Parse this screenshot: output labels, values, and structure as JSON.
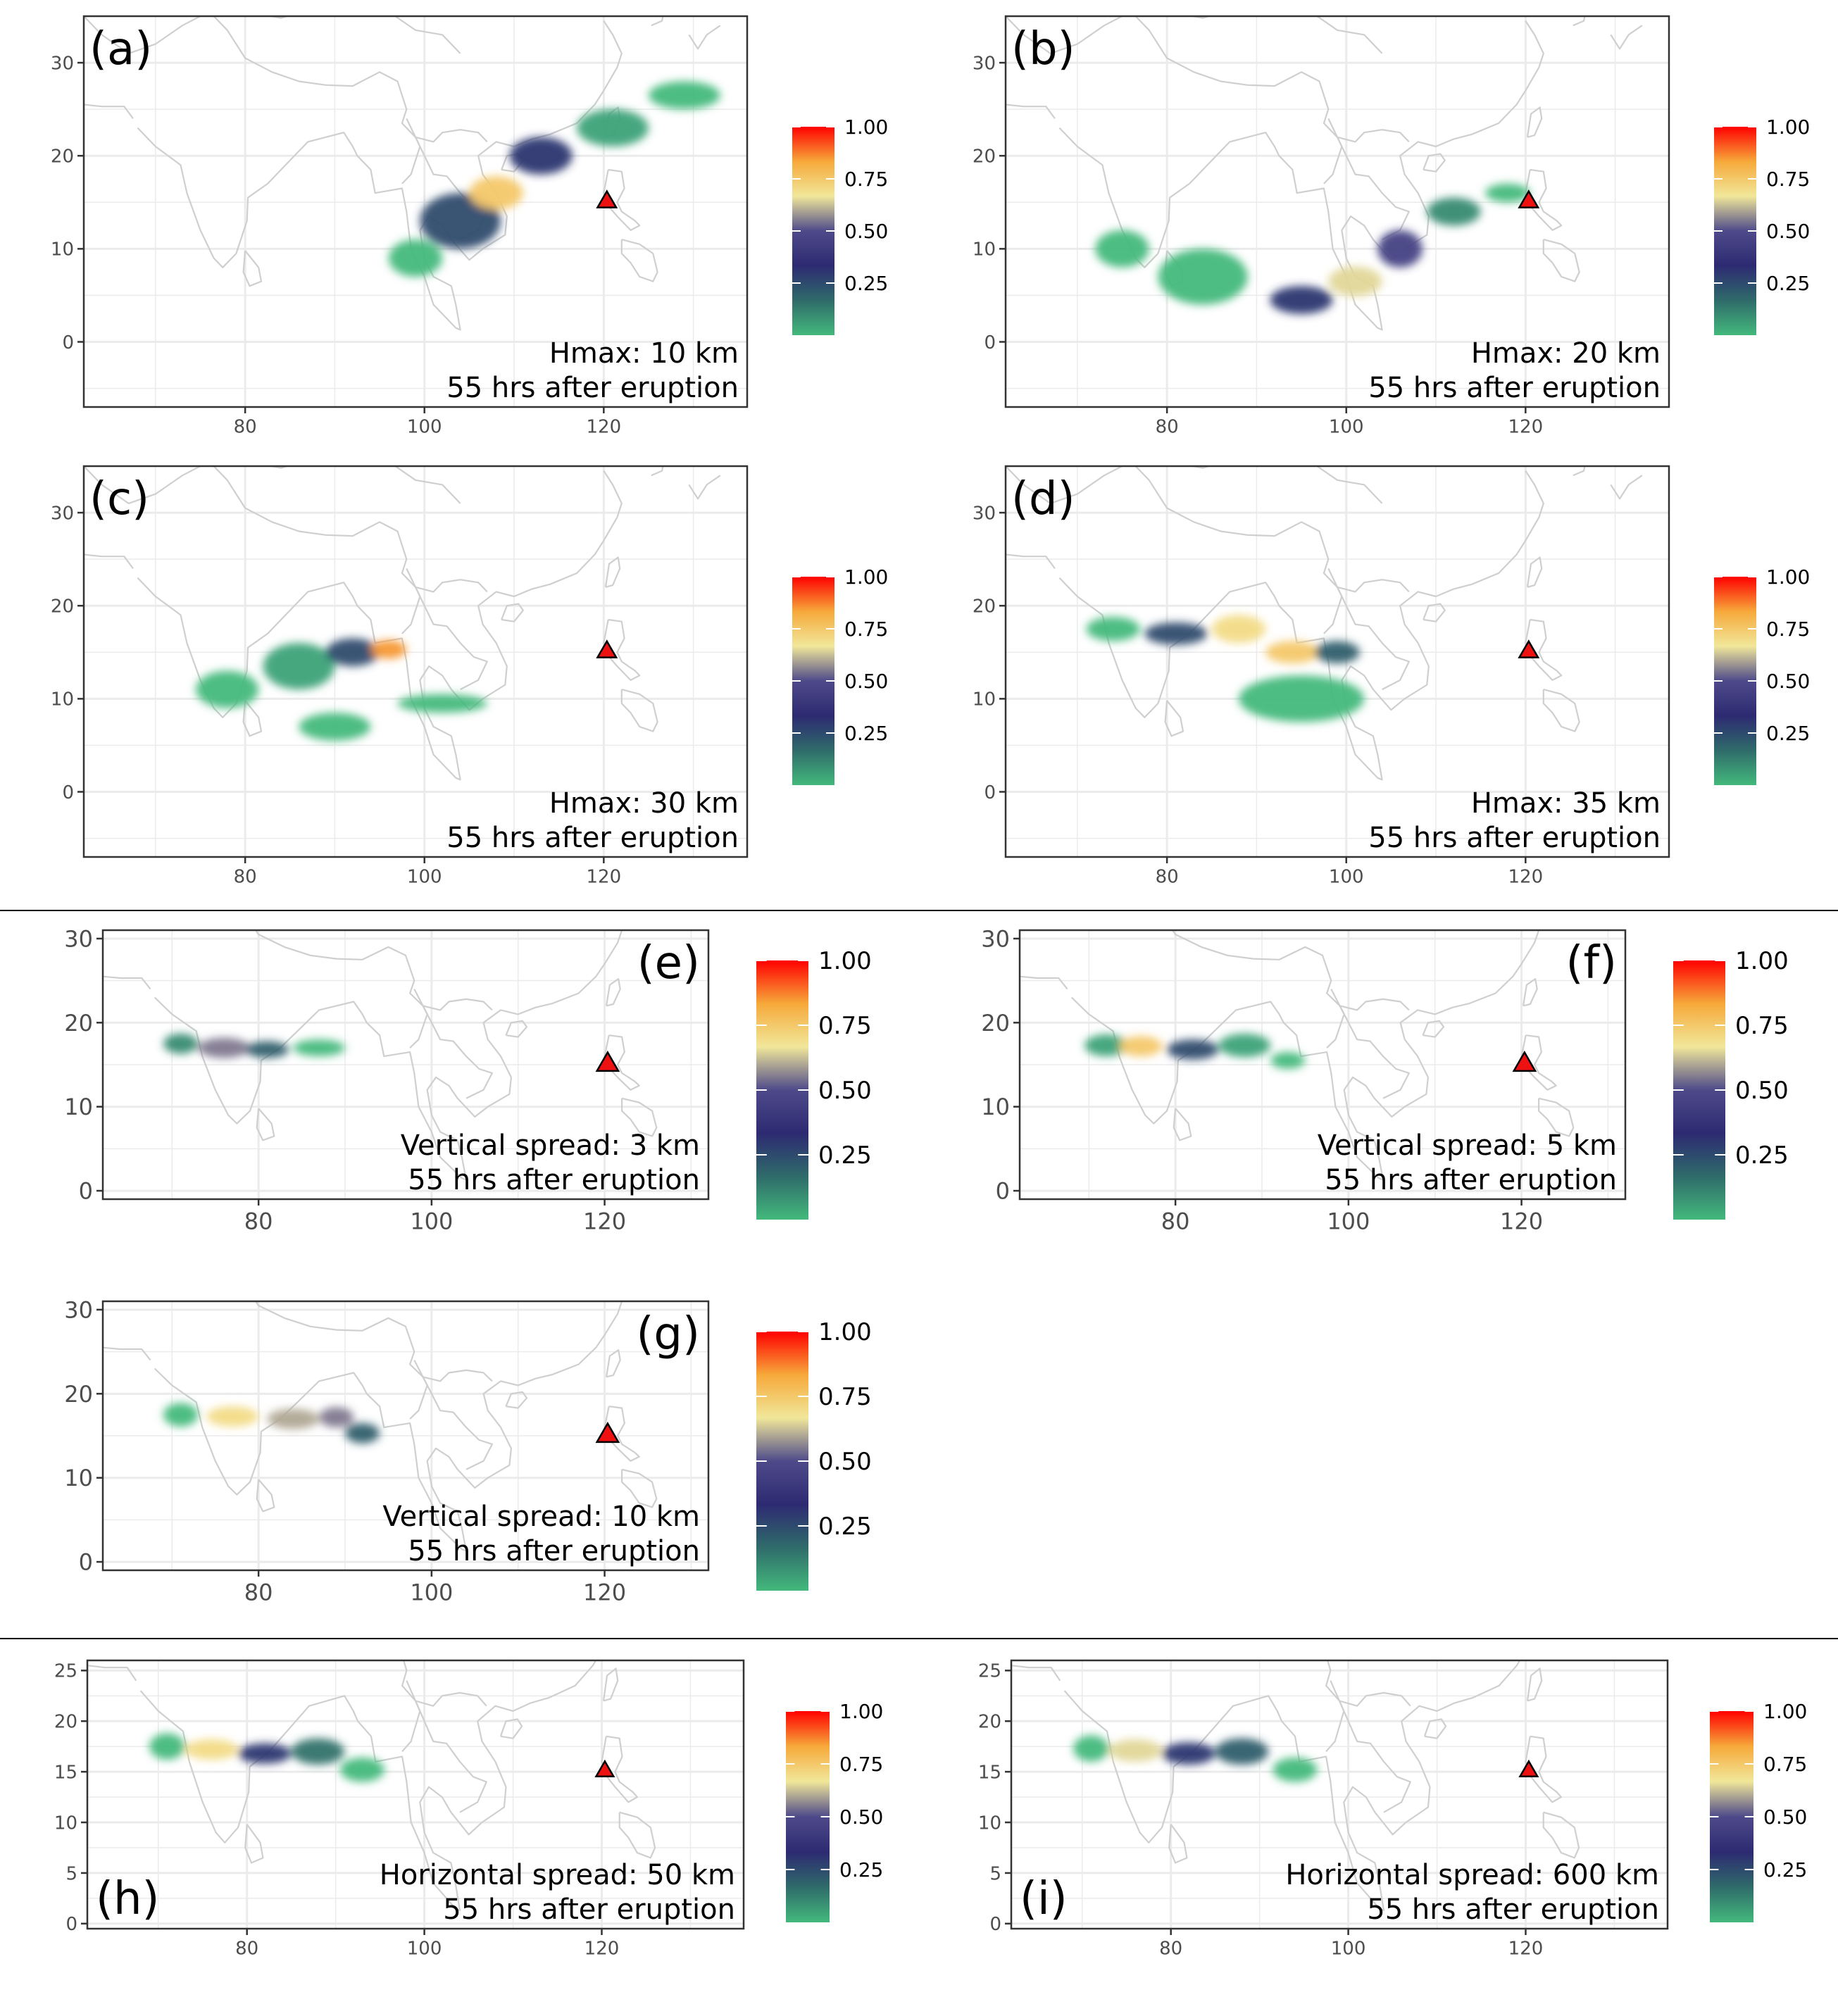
{
  "colors": {
    "panel_border": "#333333",
    "grid": "#ebebeb",
    "land_outline": "#cfcfcf",
    "volcano_fill": "#ee1111",
    "volcano_stroke": "#000000",
    "separator": "#000000",
    "colorbar_stops": [
      "#43b97c",
      "#2f6b6a",
      "#2d2a72",
      "#4e4a8a",
      "#f1e79a",
      "#f6a93a",
      "#ff0000"
    ]
  },
  "chart_data": [
    {
      "type": "heatmap",
      "panel": "(a)",
      "annotation_line1": "Hmax: 10 km",
      "annotation_line2": "55 hrs after eruption",
      "x_ticks": [
        "80",
        "100",
        "120"
      ],
      "y_ticks": [
        "0",
        "10",
        "20",
        "30"
      ],
      "xlim": [
        62,
        136
      ],
      "ylim": [
        -7,
        35
      ],
      "colorbar_ticks": [
        "1.00",
        "0.75",
        "0.50",
        "0.25"
      ],
      "colorbar_range": [
        0,
        1
      ],
      "volcano": [
        120.35,
        15.13
      ],
      "plume": [
        {
          "lon": 99,
          "lat": 9,
          "rx": 3,
          "ry": 2,
          "level": 0
        },
        {
          "lon": 104,
          "lat": 13,
          "rx": 4.5,
          "ry": 3,
          "level": 0.25
        },
        {
          "lon": 108,
          "lat": 16,
          "rx": 3,
          "ry": 1.8,
          "level": 0.75
        },
        {
          "lon": 113,
          "lat": 20,
          "rx": 3.5,
          "ry": 2,
          "level": 0.3
        },
        {
          "lon": 121,
          "lat": 23,
          "rx": 4,
          "ry": 2,
          "level": 0.05
        },
        {
          "lon": 129,
          "lat": 26.5,
          "rx": 4,
          "ry": 1.5,
          "level": 0
        }
      ]
    },
    {
      "type": "heatmap",
      "panel": "(b)",
      "annotation_line1": "Hmax: 20 km",
      "annotation_line2": "55 hrs after eruption",
      "x_ticks": [
        "80",
        "100",
        "120"
      ],
      "y_ticks": [
        "0",
        "10",
        "20",
        "30"
      ],
      "xlim": [
        62,
        136
      ],
      "ylim": [
        -7,
        35
      ],
      "colorbar_ticks": [
        "1.00",
        "0.75",
        "0.50",
        "0.25"
      ],
      "colorbar_range": [
        0,
        1
      ],
      "volcano": [
        120.35,
        15.13
      ],
      "plume": [
        {
          "lon": 75,
          "lat": 10,
          "rx": 3,
          "ry": 2,
          "level": 0
        },
        {
          "lon": 84,
          "lat": 7,
          "rx": 5,
          "ry": 3,
          "level": 0
        },
        {
          "lon": 95,
          "lat": 4.5,
          "rx": 3.5,
          "ry": 1.5,
          "level": 0.3
        },
        {
          "lon": 101,
          "lat": 6.5,
          "rx": 3,
          "ry": 1.6,
          "level": 0.65
        },
        {
          "lon": 106,
          "lat": 10,
          "rx": 2.5,
          "ry": 2,
          "level": 0.45
        },
        {
          "lon": 112,
          "lat": 14,
          "rx": 3,
          "ry": 1.5,
          "level": 0.1
        },
        {
          "lon": 118,
          "lat": 16,
          "rx": 2.5,
          "ry": 1,
          "level": 0
        }
      ]
    },
    {
      "type": "heatmap",
      "panel": "(c)",
      "annotation_line1": "Hmax: 30 km",
      "annotation_line2": "55 hrs after eruption",
      "x_ticks": [
        "80",
        "100",
        "120"
      ],
      "y_ticks": [
        "0",
        "10",
        "20",
        "30"
      ],
      "xlim": [
        62,
        136
      ],
      "ylim": [
        -7,
        35
      ],
      "colorbar_ticks": [
        "1.00",
        "0.75",
        "0.50",
        "0.25"
      ],
      "colorbar_range": [
        0,
        1
      ],
      "volcano": [
        120.35,
        15.13
      ],
      "plume": [
        {
          "lon": 78,
          "lat": 11,
          "rx": 3.5,
          "ry": 2,
          "level": 0
        },
        {
          "lon": 86,
          "lat": 13.5,
          "rx": 4,
          "ry": 2.5,
          "level": 0.05
        },
        {
          "lon": 92,
          "lat": 15,
          "rx": 3,
          "ry": 1.5,
          "level": 0.25
        },
        {
          "lon": 96,
          "lat": 15.3,
          "rx": 2,
          "ry": 1,
          "level": 0.85
        },
        {
          "lon": 90,
          "lat": 7,
          "rx": 4,
          "ry": 1.5,
          "level": 0
        },
        {
          "lon": 102,
          "lat": 9.5,
          "rx": 5,
          "ry": 1,
          "level": 0
        }
      ]
    },
    {
      "type": "heatmap",
      "panel": "(d)",
      "annotation_line1": "Hmax: 35 km",
      "annotation_line2": "55 hrs after eruption",
      "x_ticks": [
        "80",
        "100",
        "120"
      ],
      "y_ticks": [
        "0",
        "10",
        "20",
        "30"
      ],
      "xlim": [
        62,
        136
      ],
      "ylim": [
        -7,
        35
      ],
      "colorbar_ticks": [
        "1.00",
        "0.75",
        "0.50",
        "0.25"
      ],
      "colorbar_range": [
        0,
        1
      ],
      "volcano": [
        120.35,
        15.13
      ],
      "plume": [
        {
          "lon": 74,
          "lat": 17.5,
          "rx": 3,
          "ry": 1.3,
          "level": 0
        },
        {
          "lon": 81,
          "lat": 17,
          "rx": 3.5,
          "ry": 1.2,
          "level": 0.25
        },
        {
          "lon": 88,
          "lat": 17.5,
          "rx": 3,
          "ry": 1.5,
          "level": 0.7
        },
        {
          "lon": 94,
          "lat": 15,
          "rx": 3,
          "ry": 1.2,
          "level": 0.75
        },
        {
          "lon": 99,
          "lat": 15,
          "rx": 2.5,
          "ry": 1.2,
          "level": 0.2
        },
        {
          "lon": 95,
          "lat": 10,
          "rx": 7,
          "ry": 2.5,
          "level": 0
        }
      ]
    },
    {
      "type": "heatmap",
      "panel": "(e)",
      "annotation_line1": "Vertical spread: 3 km",
      "annotation_line2": "55 hrs after eruption",
      "x_ticks": [
        "80",
        "100",
        "120"
      ],
      "y_ticks": [
        "0",
        "10",
        "20",
        "30"
      ],
      "xlim": [
        62,
        132
      ],
      "ylim": [
        -1,
        31
      ],
      "colorbar_ticks": [
        "1.00",
        "0.75",
        "0.50",
        "0.25"
      ],
      "colorbar_range": [
        0,
        1
      ],
      "volcano": [
        120.35,
        15.13
      ],
      "plume": [
        {
          "lon": 71,
          "lat": 17.5,
          "rx": 2,
          "ry": 1.2,
          "level": 0.1
        },
        {
          "lon": 76,
          "lat": 17,
          "rx": 3,
          "ry": 1.2,
          "level": 0.55
        },
        {
          "lon": 81,
          "lat": 16.8,
          "rx": 2.5,
          "ry": 1,
          "level": 0.2
        },
        {
          "lon": 87,
          "lat": 17,
          "rx": 3,
          "ry": 1,
          "level": 0
        }
      ]
    },
    {
      "type": "heatmap",
      "panel": "(f)",
      "annotation_line1": "Vertical spread: 5 km",
      "annotation_line2": "55 hrs after eruption",
      "x_ticks": [
        "80",
        "100",
        "120"
      ],
      "y_ticks": [
        "0",
        "10",
        "20",
        "30"
      ],
      "xlim": [
        62,
        132
      ],
      "ylim": [
        -1,
        31
      ],
      "colorbar_ticks": [
        "1.00",
        "0.75",
        "0.50",
        "0.25"
      ],
      "colorbar_range": [
        0,
        1
      ],
      "volcano": [
        120.35,
        15.13
      ],
      "plume": [
        {
          "lon": 72,
          "lat": 17.3,
          "rx": 2.5,
          "ry": 1.3,
          "level": 0.05
        },
        {
          "lon": 76,
          "lat": 17.2,
          "rx": 2.5,
          "ry": 1.2,
          "level": 0.75
        },
        {
          "lon": 82,
          "lat": 16.8,
          "rx": 3,
          "ry": 1.2,
          "level": 0.25
        },
        {
          "lon": 88,
          "lat": 17.3,
          "rx": 3,
          "ry": 1.4,
          "level": 0.05
        },
        {
          "lon": 93,
          "lat": 15.5,
          "rx": 2,
          "ry": 1,
          "level": 0
        }
      ]
    },
    {
      "type": "heatmap",
      "panel": "(g)",
      "annotation_line1": "Vertical spread: 10 km",
      "annotation_line2": "55 hrs after eruption",
      "x_ticks": [
        "80",
        "100",
        "120"
      ],
      "y_ticks": [
        "0",
        "10",
        "20",
        "30"
      ],
      "xlim": [
        62,
        132
      ],
      "ylim": [
        -1,
        31
      ],
      "colorbar_ticks": [
        "1.00",
        "0.75",
        "0.50",
        "0.25"
      ],
      "colorbar_range": [
        0,
        1
      ],
      "volcano": [
        120.35,
        15.13
      ],
      "plume": [
        {
          "lon": 71,
          "lat": 17.5,
          "rx": 2,
          "ry": 1.4,
          "level": 0
        },
        {
          "lon": 77,
          "lat": 17.3,
          "rx": 3,
          "ry": 1.2,
          "level": 0.7
        },
        {
          "lon": 84,
          "lat": 17,
          "rx": 3,
          "ry": 1.2,
          "level": 0.6
        },
        {
          "lon": 89,
          "lat": 17.2,
          "rx": 2,
          "ry": 1.2,
          "level": 0.55
        },
        {
          "lon": 92,
          "lat": 15.3,
          "rx": 2,
          "ry": 1.2,
          "level": 0.2
        }
      ]
    },
    {
      "type": "heatmap",
      "panel": "(h)",
      "annotation_line1": "Horizontal spread: 50 km",
      "annotation_line2": "55 hrs after eruption",
      "x_ticks": [
        "80",
        "100",
        "120"
      ],
      "y_ticks": [
        "0",
        "5",
        "10",
        "15",
        "20",
        "25"
      ],
      "xlim": [
        62,
        136
      ],
      "ylim": [
        -0.5,
        26
      ],
      "colorbar_ticks": [
        "1.00",
        "0.75",
        "0.50",
        "0.25"
      ],
      "colorbar_range": [
        0,
        1
      ],
      "volcano": [
        120.35,
        15.13
      ],
      "plume": [
        {
          "lon": 71,
          "lat": 17.5,
          "rx": 2,
          "ry": 1.3,
          "level": 0
        },
        {
          "lon": 76,
          "lat": 17.2,
          "rx": 3,
          "ry": 1,
          "level": 0.7
        },
        {
          "lon": 82,
          "lat": 16.8,
          "rx": 3,
          "ry": 1,
          "level": 0.3
        },
        {
          "lon": 88,
          "lat": 17,
          "rx": 3,
          "ry": 1.3,
          "level": 0.15
        },
        {
          "lon": 93,
          "lat": 15.2,
          "rx": 2.5,
          "ry": 1.2,
          "level": 0
        }
      ]
    },
    {
      "type": "heatmap",
      "panel": "(i)",
      "annotation_line1": "Horizontal spread: 600 km",
      "annotation_line2": "55 hrs after eruption",
      "x_ticks": [
        "80",
        "100",
        "120"
      ],
      "y_ticks": [
        "0",
        "5",
        "10",
        "15",
        "20",
        "25"
      ],
      "xlim": [
        62,
        136
      ],
      "ylim": [
        -0.5,
        26
      ],
      "colorbar_ticks": [
        "1.00",
        "0.75",
        "0.50",
        "0.25"
      ],
      "colorbar_range": [
        0,
        1
      ],
      "volcano": [
        120.35,
        15.13
      ],
      "plume": [
        {
          "lon": 71,
          "lat": 17.3,
          "rx": 2,
          "ry": 1.3,
          "level": 0
        },
        {
          "lon": 76,
          "lat": 17.1,
          "rx": 3,
          "ry": 1.1,
          "level": 0.65
        },
        {
          "lon": 82,
          "lat": 16.8,
          "rx": 3,
          "ry": 1.1,
          "level": 0.3
        },
        {
          "lon": 88,
          "lat": 17,
          "rx": 3,
          "ry": 1.3,
          "level": 0.2
        },
        {
          "lon": 94,
          "lat": 15.2,
          "rx": 2.5,
          "ry": 1.2,
          "level": 0
        }
      ]
    }
  ]
}
